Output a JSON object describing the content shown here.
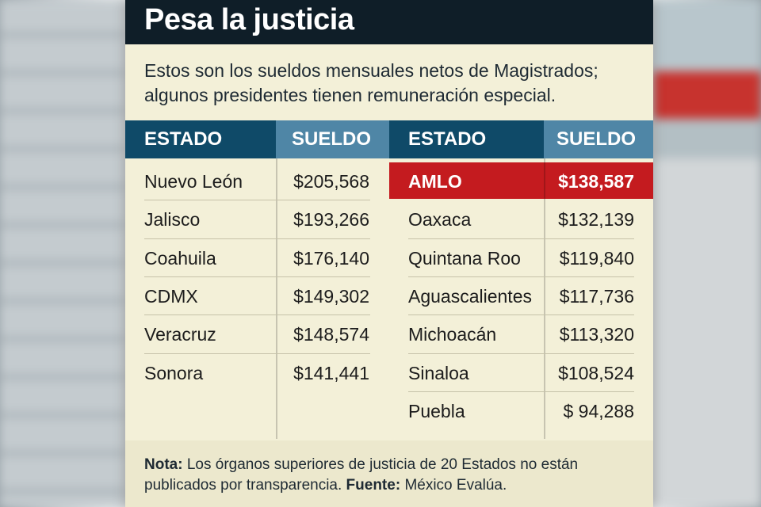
{
  "title": "Pesa la justicia",
  "subtitle": "Estos son los sueldos mensuales netos de Magistrados; algunos presidentes tienen remuneración especial.",
  "columns": [
    "ESTADO",
    "SUELDO",
    "ESTADO",
    "SUELDO"
  ],
  "colors": {
    "title_bg": "#0f1e28",
    "header_dark": "#0f4a68",
    "header_light": "#4f86a6",
    "highlight": "#c41b1f",
    "paper": "#f3f0d8"
  },
  "chart_data": {
    "type": "table",
    "title": "Pesa la justicia",
    "columns": [
      "ESTADO",
      "SUELDO"
    ],
    "left": [
      {
        "estado": "Nuevo León",
        "sueldo": "$205,568"
      },
      {
        "estado": "Jalisco",
        "sueldo": "$193,266"
      },
      {
        "estado": "Coahuila",
        "sueldo": "$176,140"
      },
      {
        "estado": "CDMX",
        "sueldo": "$149,302"
      },
      {
        "estado": "Veracruz",
        "sueldo": "$148,574"
      },
      {
        "estado": "Sonora",
        "sueldo": "$141,441"
      }
    ],
    "right": [
      {
        "estado": "AMLO",
        "sueldo": "$138,587",
        "highlight": true
      },
      {
        "estado": "Oaxaca",
        "sueldo": "$132,139"
      },
      {
        "estado": "Quintana Roo",
        "sueldo": "$119,840"
      },
      {
        "estado": "Aguascalientes",
        "sueldo": "$117,736"
      },
      {
        "estado": "Michoacán",
        "sueldo": "$113,320"
      },
      {
        "estado": "Sinaloa",
        "sueldo": "$108,524"
      },
      {
        "estado": "Puebla",
        "sueldo": "$ 94,288"
      }
    ]
  },
  "note": {
    "label": "Nota:",
    "text": "Los órganos superiores de justicia de 20 Estados no están publicados por transparencia.",
    "source_label": "Fuente:",
    "source": "México Evalúa."
  }
}
